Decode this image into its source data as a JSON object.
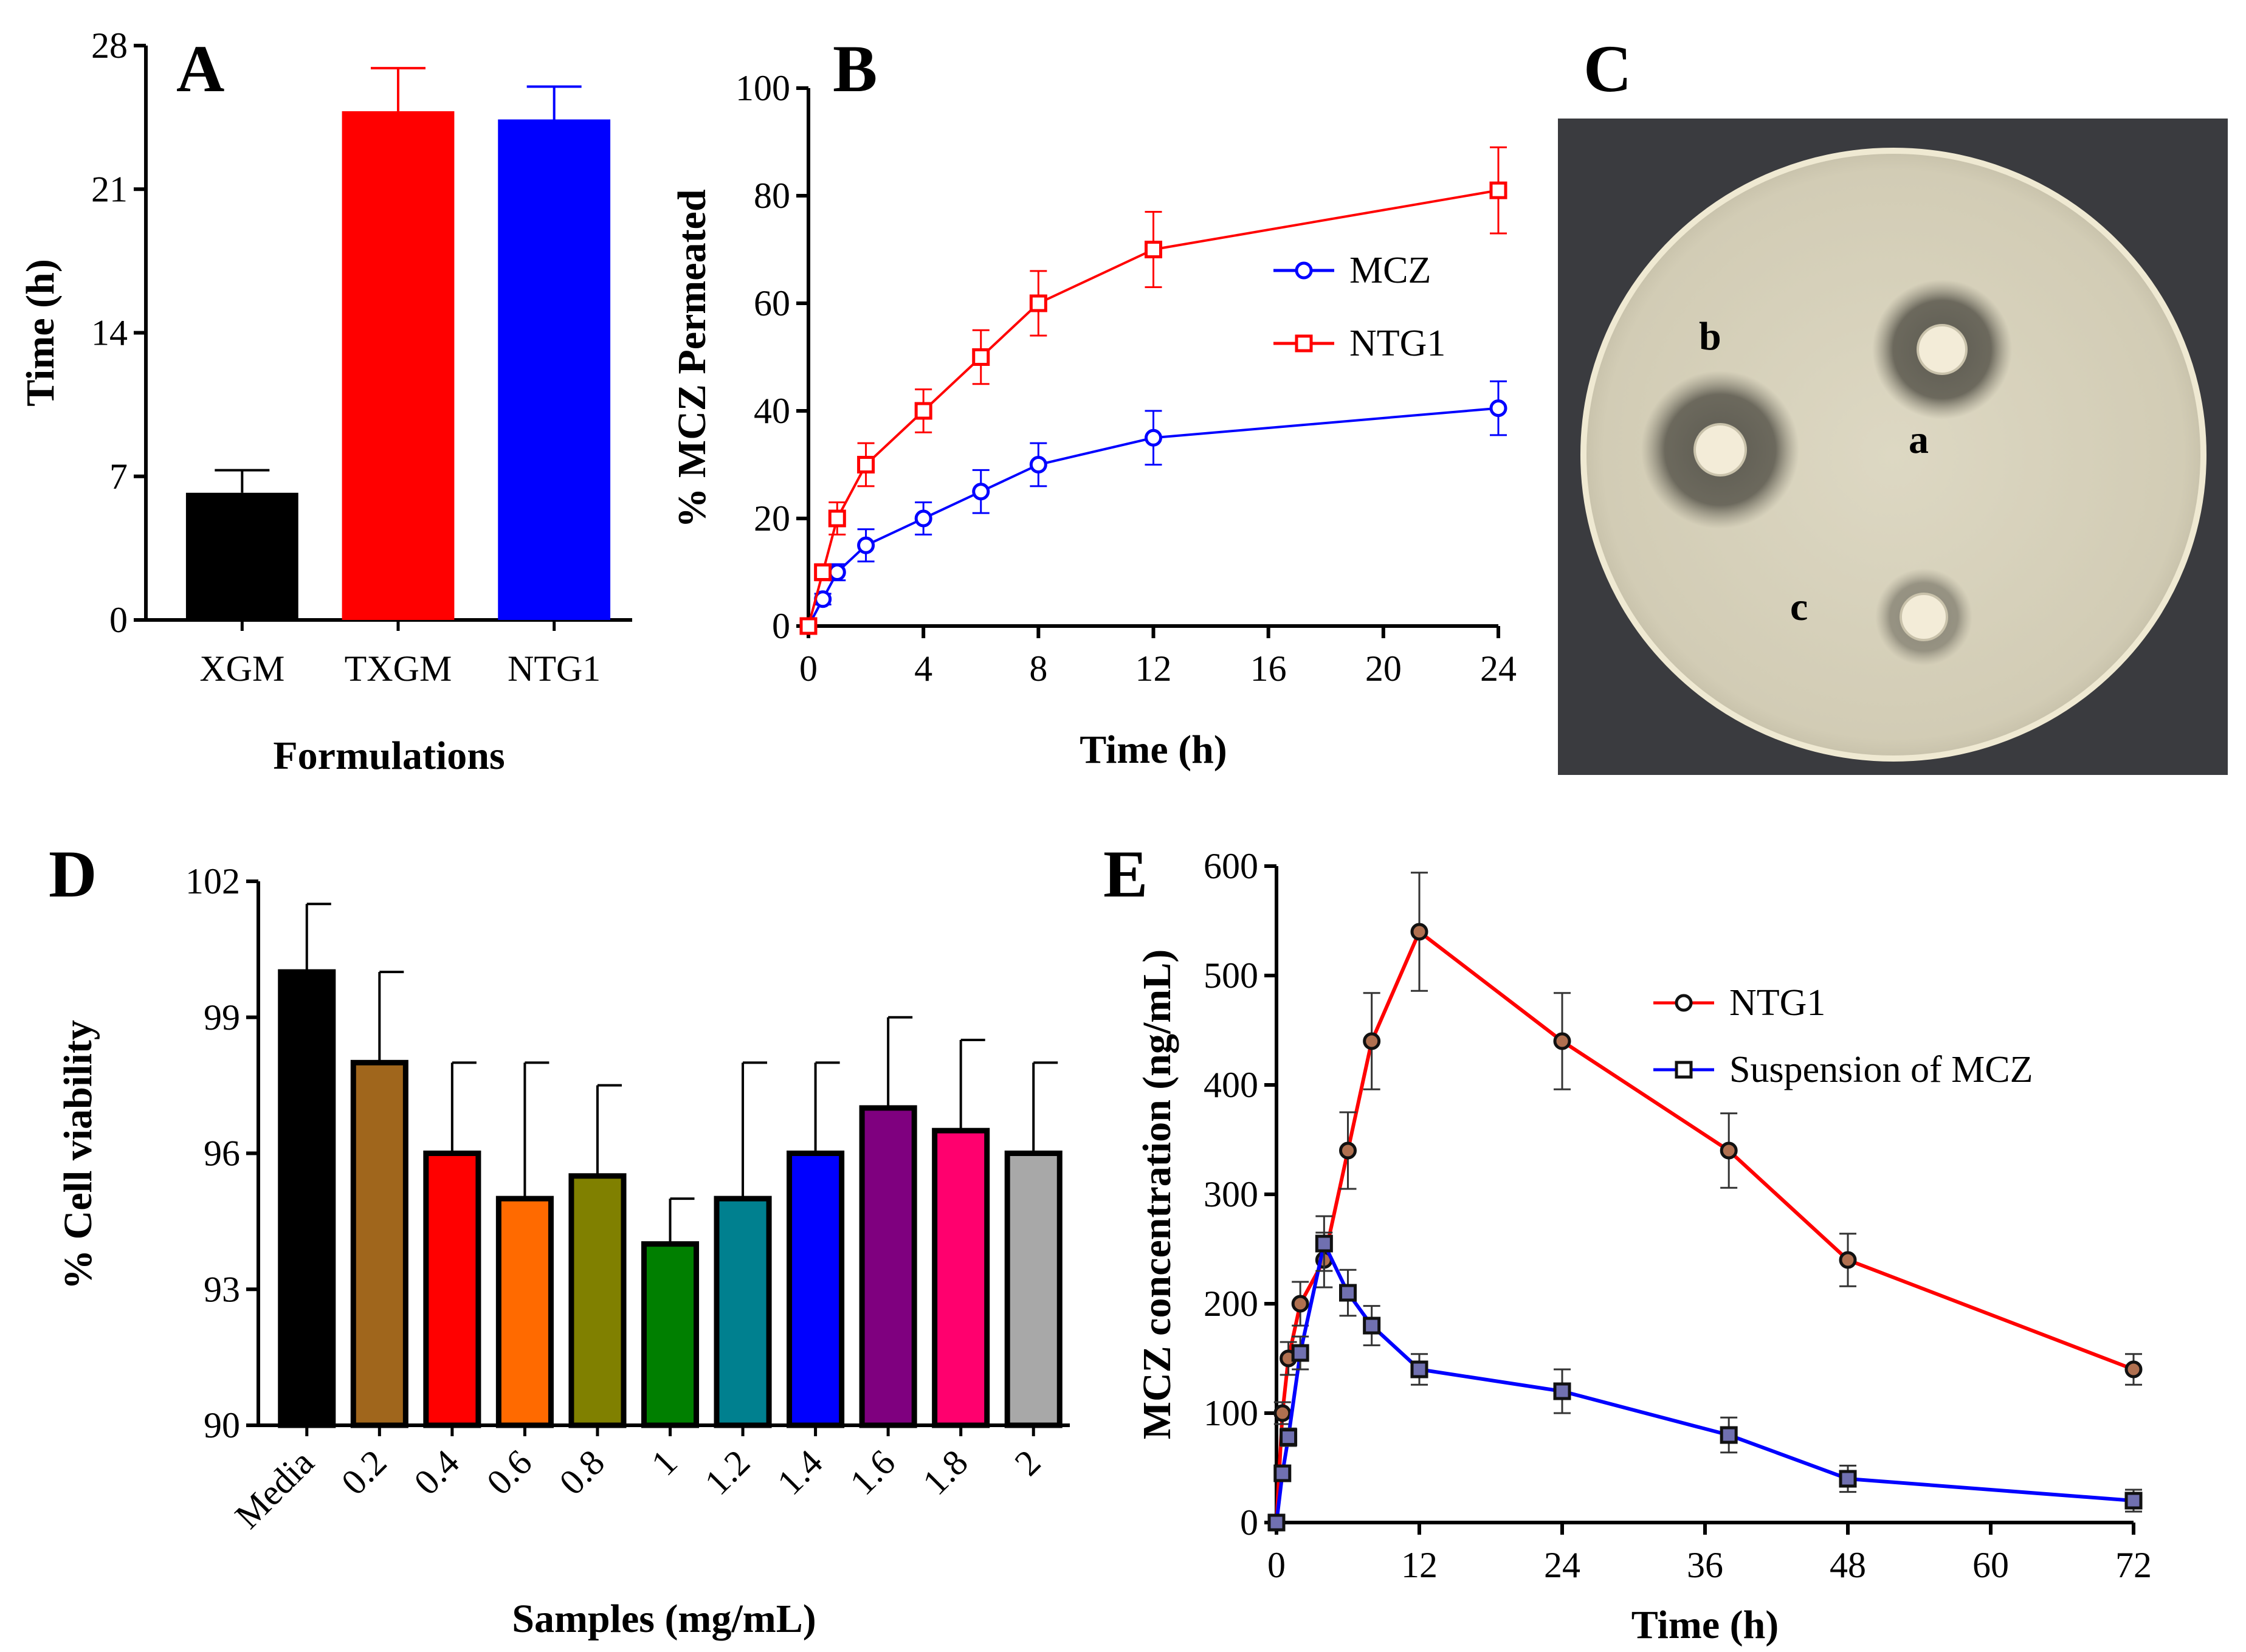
{
  "panels": {
    "A": {
      "letter": "A"
    },
    "B": {
      "letter": "B"
    },
    "C": {
      "letter": "C"
    },
    "D": {
      "letter": "D"
    },
    "E": {
      "letter": "E"
    }
  },
  "plate": {
    "labels": [
      "a",
      "b",
      "c"
    ],
    "colors": {
      "bg": "#3a3b3f",
      "plate": "#d9d3bd",
      "zone": "#6f6c5f",
      "disc": "#f3ecd8"
    }
  },
  "chart_data": [
    {
      "id": "A",
      "type": "bar",
      "title": "",
      "xlabel": "Formulations",
      "ylabel": "Time (h)",
      "ylim": [
        0,
        28
      ],
      "yticks": [
        0,
        7,
        14,
        21,
        28
      ],
      "categories": [
        "XGM",
        "TXGM",
        "NTG1"
      ],
      "values": [
        6.2,
        24.8,
        24.4
      ],
      "errors": [
        1.1,
        2.1,
        1.6
      ],
      "colors": [
        "#000000",
        "#ff0000",
        "#0000ff"
      ]
    },
    {
      "id": "B",
      "type": "line",
      "title": "",
      "xlabel": "Time (h)",
      "ylabel": "% MCZ Permeated",
      "xlim": [
        0,
        24
      ],
      "ylim": [
        0,
        100
      ],
      "xticks": [
        0,
        4,
        8,
        12,
        16,
        20,
        24
      ],
      "yticks": [
        0,
        20,
        40,
        60,
        80,
        100
      ],
      "legend_position": "right",
      "series": [
        {
          "name": "MCZ",
          "marker": "circle",
          "color": "#0000ff",
          "x": [
            0,
            0.5,
            1,
            2,
            4,
            6,
            8,
            12,
            24
          ],
          "values": [
            0,
            5,
            10,
            15,
            20,
            25,
            30,
            35,
            40.5
          ],
          "errors": [
            0,
            1,
            1.5,
            3,
            3,
            4,
            4,
            5,
            5
          ]
        },
        {
          "name": "NTG1",
          "marker": "square",
          "color": "#ff0000",
          "x": [
            0,
            0.5,
            1,
            2,
            4,
            6,
            8,
            12,
            24
          ],
          "values": [
            0,
            10,
            20,
            30,
            40,
            50,
            60,
            70,
            81
          ],
          "errors": [
            0,
            1.5,
            3,
            4,
            4,
            5,
            6,
            7,
            8
          ]
        }
      ]
    },
    {
      "id": "D",
      "type": "bar",
      "title": "",
      "xlabel": "Samples (mg/mL)",
      "ylabel": "% Cell viability",
      "ylim": [
        90,
        102
      ],
      "yticks": [
        90,
        93,
        96,
        99,
        102
      ],
      "categories": [
        "Media",
        "0.2",
        "0.4",
        "0.6",
        "0.8",
        "1",
        "1.2",
        "1.4",
        "1.6",
        "1.8",
        "2"
      ],
      "values": [
        100,
        98,
        96,
        95,
        95.5,
        94,
        95,
        96,
        97,
        96.5,
        96
      ],
      "errors": [
        1.5,
        2,
        2,
        3,
        2,
        1,
        3,
        2,
        2,
        2,
        2
      ],
      "colors": [
        "#000000",
        "#a0661c",
        "#ff0000",
        "#ff6a00",
        "#808000",
        "#007f00",
        "#00808f",
        "#0000ff",
        "#7f007f",
        "#ff006e",
        "#a8a8a8"
      ]
    },
    {
      "id": "E",
      "type": "line",
      "title": "",
      "xlabel": "Time (h)",
      "ylabel": "MCZ concentration (ng/mL)",
      "xlim": [
        0,
        72
      ],
      "ylim": [
        0,
        600
      ],
      "xticks": [
        0,
        12,
        24,
        36,
        48,
        60,
        72
      ],
      "yticks": [
        0,
        100,
        200,
        300,
        400,
        500,
        600
      ],
      "legend_position": "right",
      "series": [
        {
          "name": "NTG1",
          "marker": "circle",
          "color": "#ff0000",
          "x": [
            0,
            0.5,
            1,
            2,
            4,
            6,
            8,
            12,
            24,
            38,
            48,
            72
          ],
          "values": [
            0,
            100,
            150,
            200,
            240,
            340,
            440,
            540,
            440,
            340,
            240,
            140
          ],
          "errors": [
            0,
            10,
            15,
            20,
            25,
            35,
            44,
            54,
            44,
            34,
            24,
            14
          ]
        },
        {
          "name": "Suspension of MCZ",
          "marker": "square",
          "color": "#0000ff",
          "x": [
            0,
            0.5,
            1,
            2,
            4,
            6,
            8,
            12,
            24,
            38,
            48,
            72
          ],
          "values": [
            0,
            45,
            78,
            155,
            255,
            210,
            180,
            140,
            120,
            80,
            40,
            20
          ],
          "errors": [
            0,
            5,
            8,
            15,
            25,
            21,
            18,
            14,
            20,
            16,
            12,
            10
          ]
        }
      ]
    }
  ]
}
